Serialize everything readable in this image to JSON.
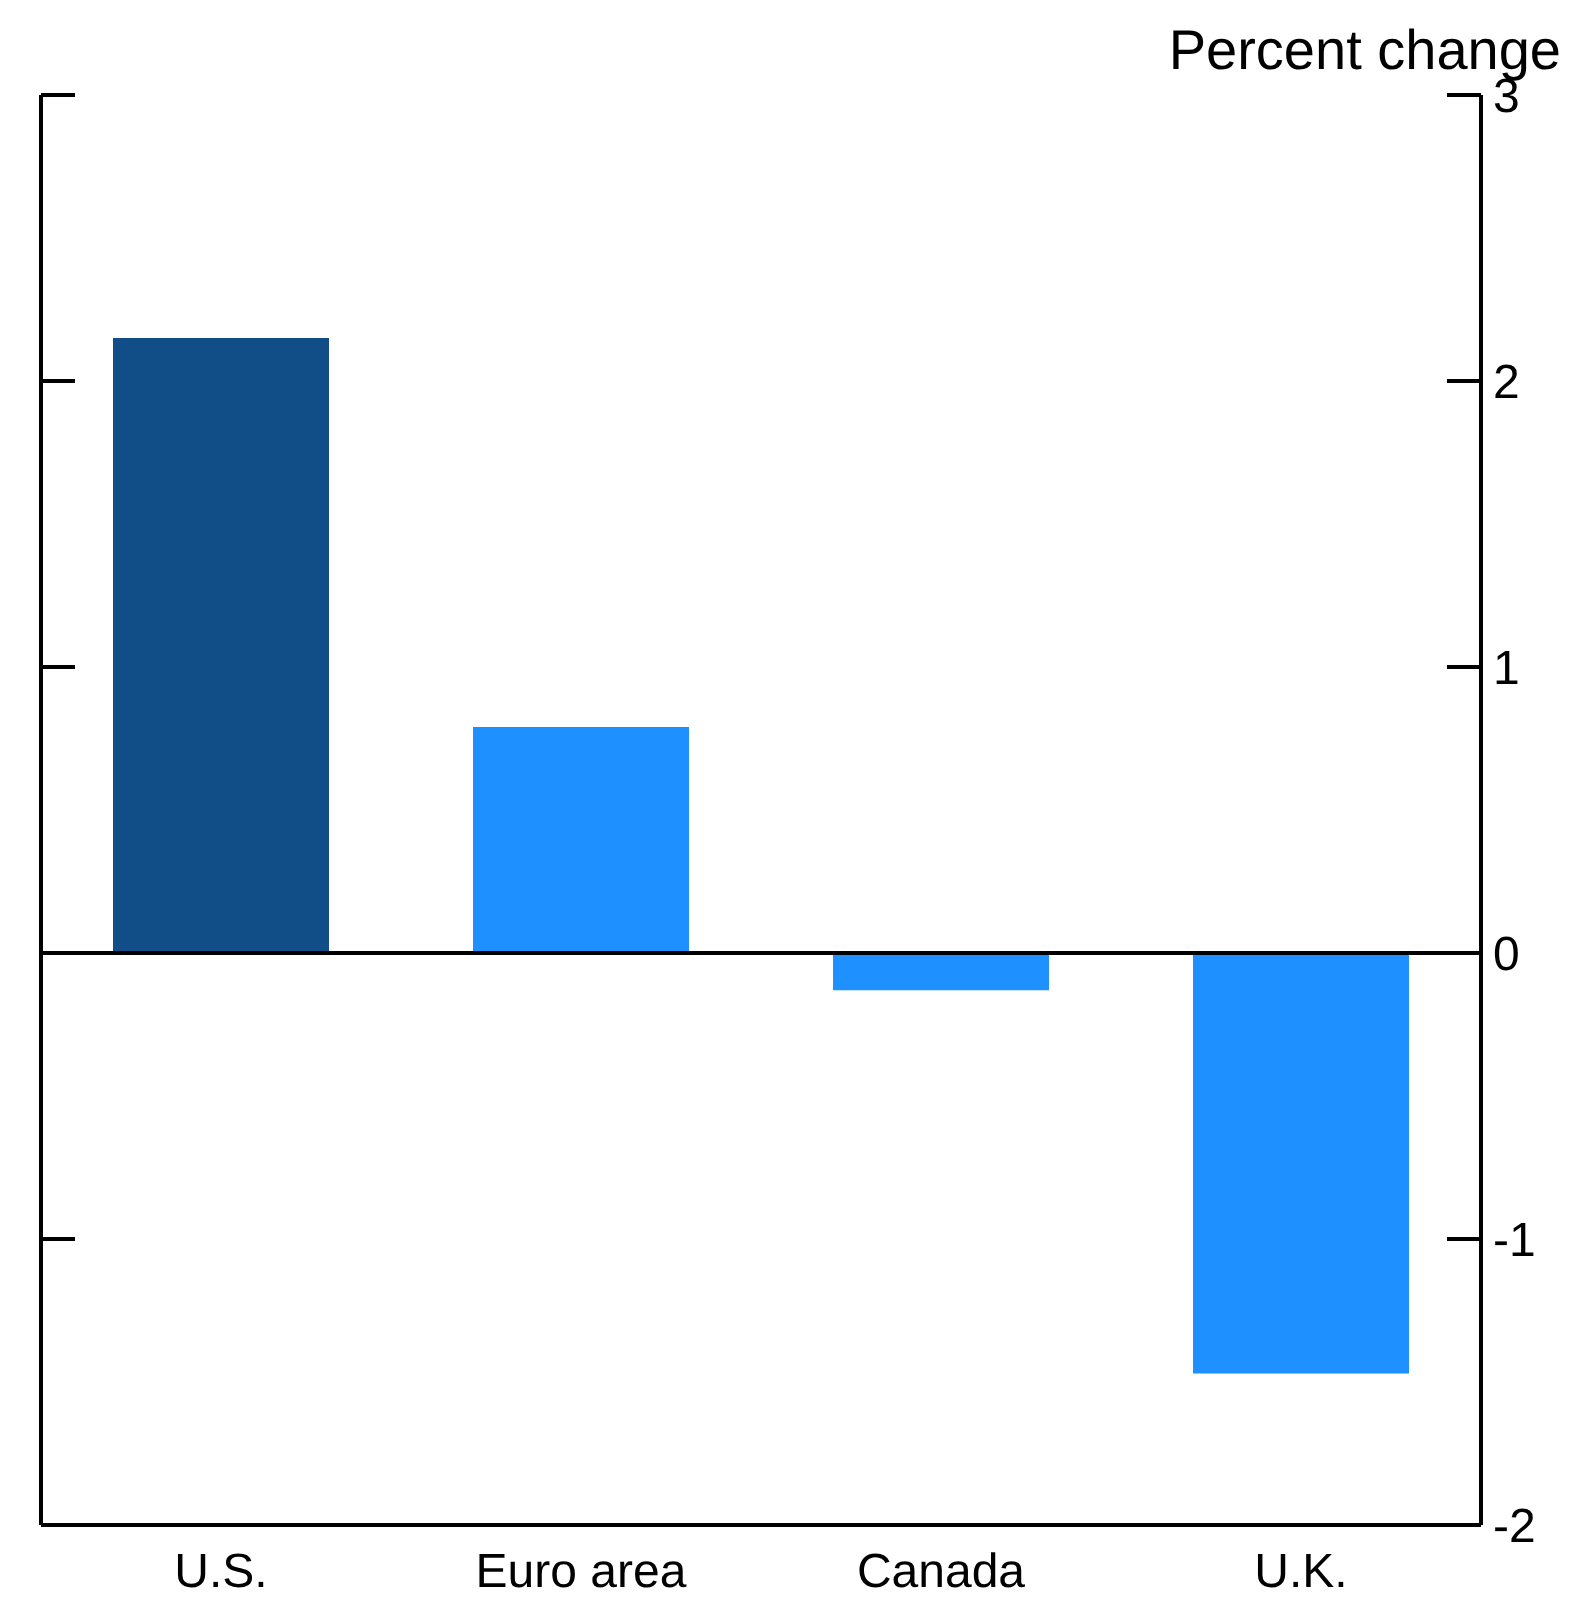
{
  "chart_data": {
    "type": "bar",
    "ylabel": "Percent change",
    "categories": [
      "U.S.",
      "Euro area",
      "Canada",
      "U.K."
    ],
    "values": [
      2.15,
      0.79,
      -0.13,
      -1.47
    ],
    "colors": [
      "#114d87",
      "#1e90ff",
      "#1e90ff",
      "#1e90ff"
    ],
    "ylim": [
      -2,
      3
    ],
    "yticks": [
      -2,
      -1,
      0,
      1,
      2,
      3
    ],
    "ref_lines": [
      {
        "axis": "y",
        "value": 0,
        "color": "#000000"
      }
    ],
    "grid": false
  }
}
